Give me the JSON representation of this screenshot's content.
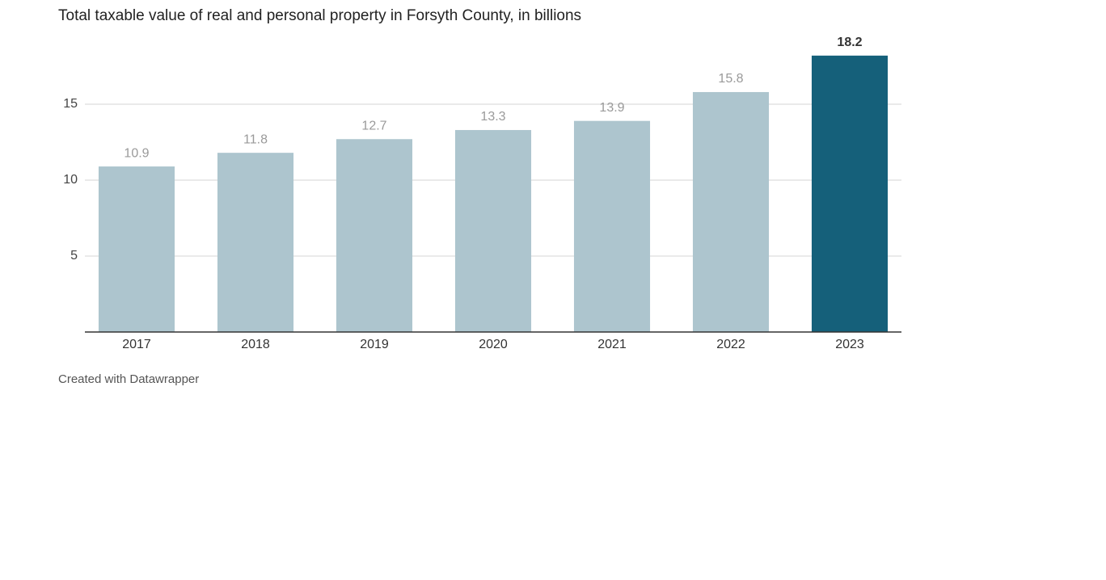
{
  "chart_data": {
    "type": "bar",
    "title": "Total taxable value of real and personal property in Forsyth County, in billions",
    "categories": [
      "2017",
      "2018",
      "2019",
      "2020",
      "2021",
      "2022",
      "2023"
    ],
    "values": [
      10.9,
      11.8,
      12.7,
      13.3,
      13.9,
      15.8,
      18.2
    ],
    "color": "#adc5ce",
    "highlight": "2023",
    "highlight_color": "#15607a",
    "ylim": [
      0,
      20
    ],
    "yticks": [
      5,
      10,
      15
    ],
    "grid": true,
    "footer": "Created with Datawrapper"
  }
}
